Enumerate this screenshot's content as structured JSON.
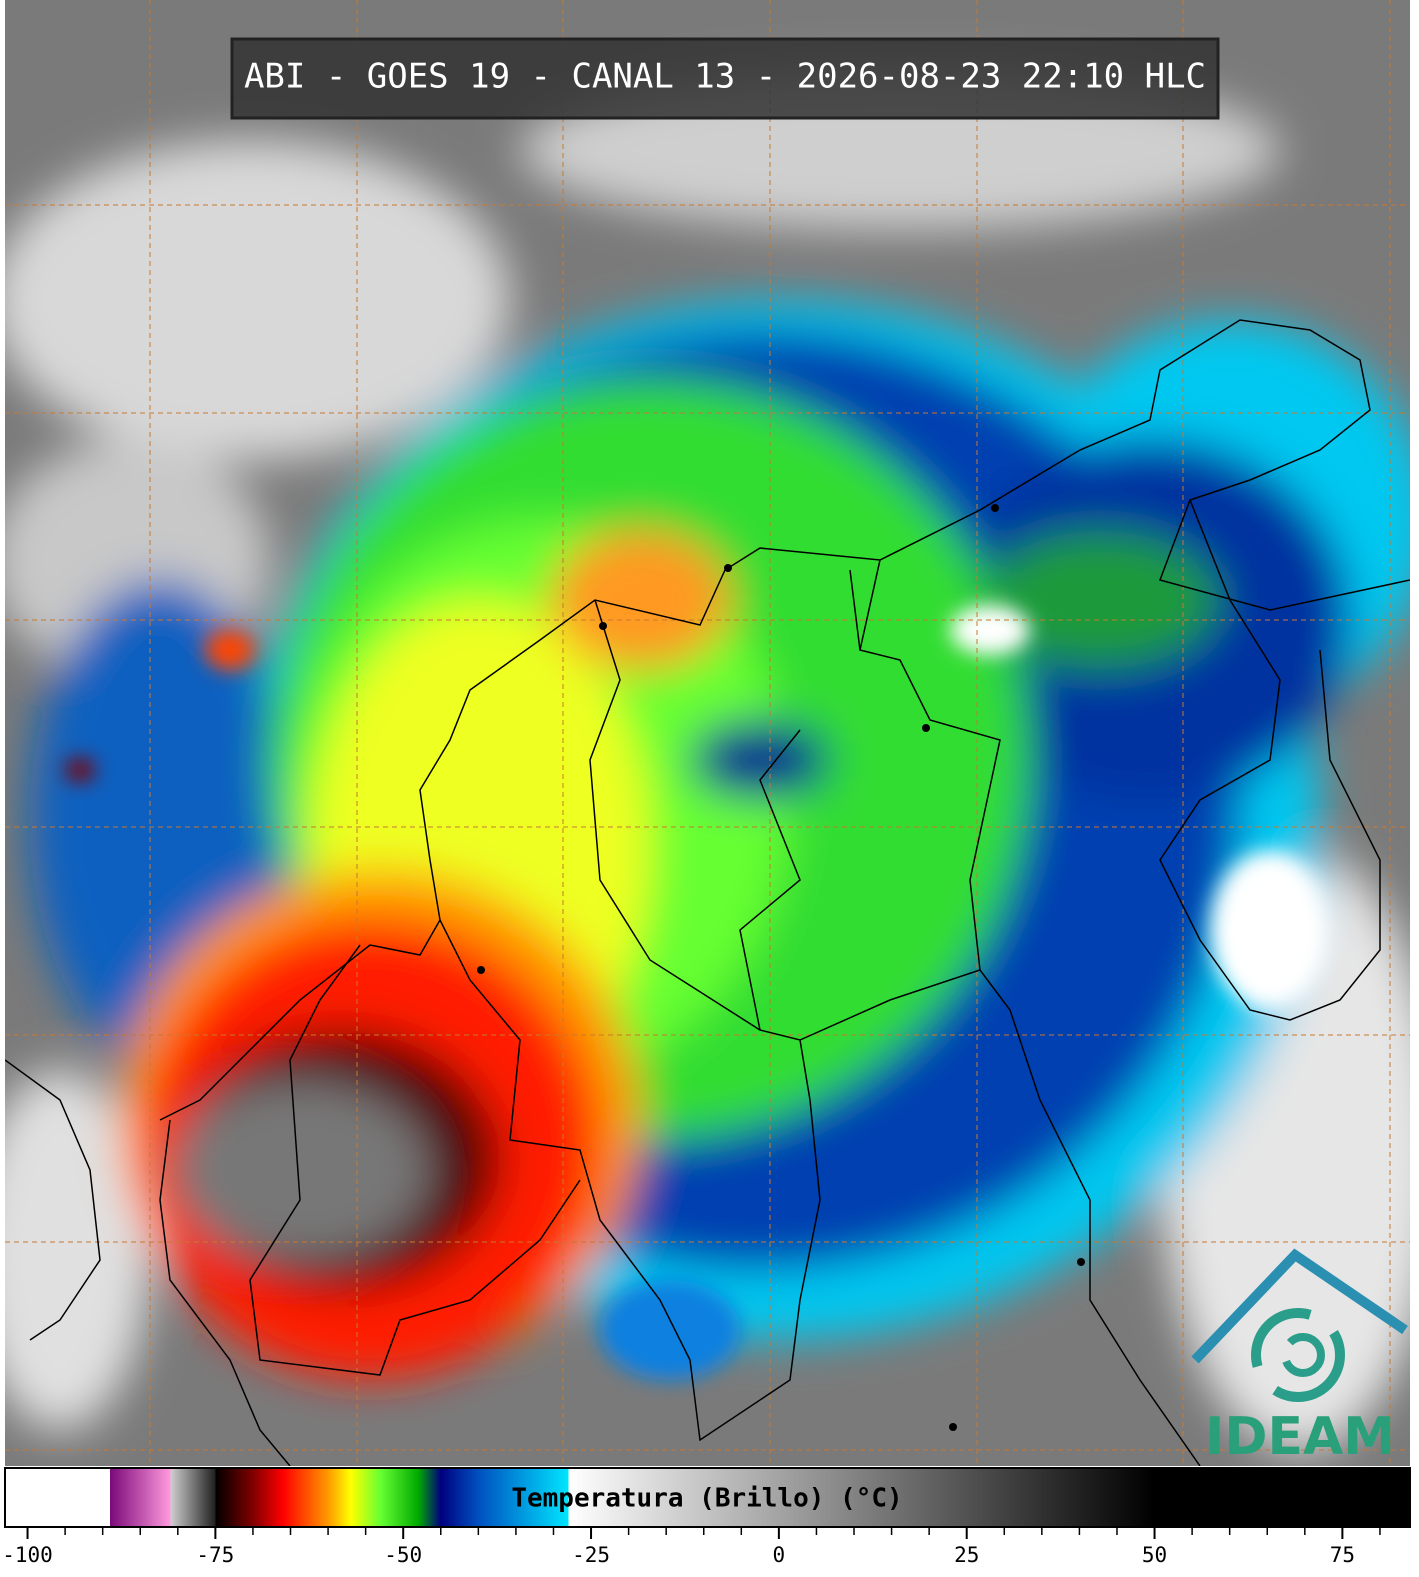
{
  "header": {
    "title": "ABI - GOES 19 - CANAL 13 - 2026-08-23 22:10 HLC"
  },
  "colorbar": {
    "label": "Temperatura (Brillo) (°C)",
    "xlim": [
      -103,
      84
    ],
    "ticks": [
      -100,
      -75,
      -50,
      -25,
      0,
      25,
      50,
      75
    ],
    "minor_ticks": [
      -95,
      -90,
      -85,
      -80,
      -70,
      -65,
      -60,
      -55,
      -45,
      -40,
      -35,
      -30,
      -20,
      -15,
      -10,
      -5,
      5,
      10,
      15,
      20,
      30,
      35,
      40,
      45,
      55,
      60,
      65,
      70,
      80
    ],
    "stops": [
      {
        "value": -103,
        "color": "#ffffff"
      },
      {
        "value": -89,
        "color": "#ffffff"
      },
      {
        "value": -89,
        "color": "#7a0a7a"
      },
      {
        "value": -81,
        "color": "#ff99dd"
      },
      {
        "value": -81,
        "color": "#d0d0d0"
      },
      {
        "value": -75,
        "color": "#202020"
      },
      {
        "value": -75,
        "color": "#000000"
      },
      {
        "value": -70,
        "color": "#800000"
      },
      {
        "value": -66,
        "color": "#ff0000"
      },
      {
        "value": -60,
        "color": "#ff9900"
      },
      {
        "value": -57,
        "color": "#ffff00"
      },
      {
        "value": -53,
        "color": "#66ff33"
      },
      {
        "value": -48,
        "color": "#00aa00"
      },
      {
        "value": -45,
        "color": "#000080"
      },
      {
        "value": -40,
        "color": "#0050c0"
      },
      {
        "value": -28,
        "color": "#00e5ff"
      },
      {
        "value": -28,
        "color": "#ffffff"
      },
      {
        "value": 50,
        "color": "#000000"
      },
      {
        "value": 84,
        "color": "#000000"
      }
    ]
  },
  "logo": {
    "text": "IDEAM"
  }
}
